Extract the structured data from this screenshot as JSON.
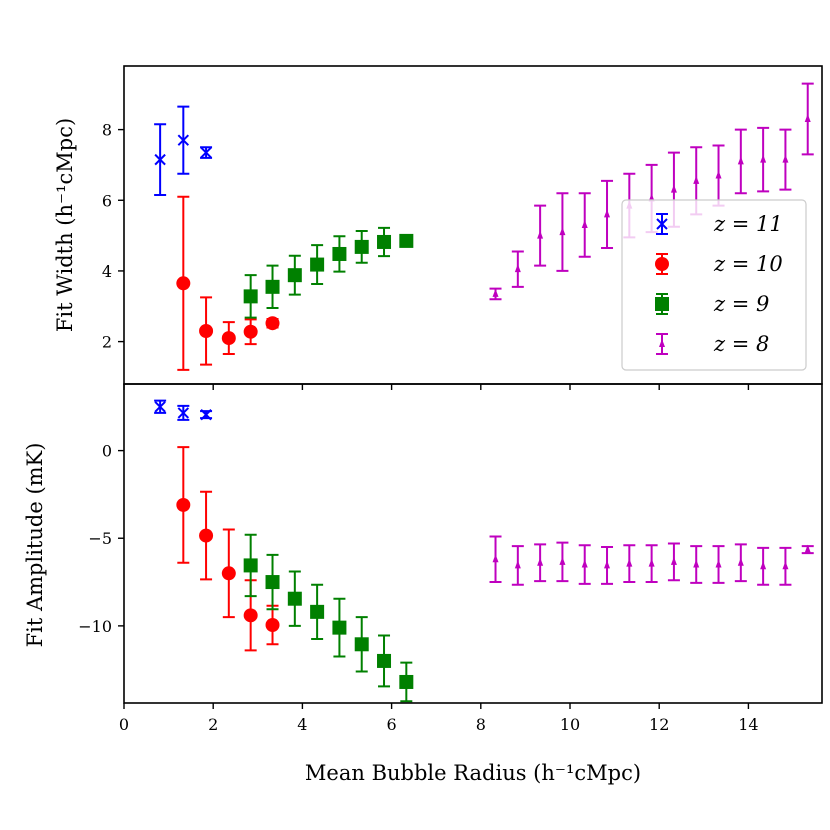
{
  "chart_data": [
    {
      "type": "scatter",
      "panel": "top",
      "ylabel": "Fit Width (h⁻¹cMpc)",
      "ylim": [
        0.8,
        9.8
      ],
      "yticks": [
        2,
        4,
        6,
        8
      ],
      "yticklabels": [
        "2",
        "4",
        "6",
        "8"
      ],
      "series": [
        {
          "name": "z = 11",
          "color": "#0000ff",
          "marker": "x",
          "x": [
            0.81,
            1.33,
            1.84
          ],
          "y": [
            7.15,
            7.7,
            7.35
          ],
          "yerr": [
            1.0,
            0.95,
            0.15
          ]
        },
        {
          "name": "z = 10",
          "color": "#ff0000",
          "marker": "o",
          "x": [
            1.33,
            1.84,
            2.35,
            2.84,
            3.33
          ],
          "y": [
            3.65,
            2.3,
            2.1,
            2.28,
            2.52
          ],
          "yerr": [
            2.45,
            0.95,
            0.45,
            0.35,
            0.12
          ]
        },
        {
          "name": "z = 9",
          "color": "#008000",
          "marker": "s",
          "x": [
            2.84,
            3.33,
            3.83,
            4.33,
            4.83,
            5.33,
            5.83,
            6.33
          ],
          "y": [
            3.28,
            3.55,
            3.88,
            4.18,
            4.48,
            4.68,
            4.82,
            4.85
          ],
          "yerr": [
            0.6,
            0.6,
            0.55,
            0.55,
            0.5,
            0.45,
            0.4,
            0.15
          ]
        },
        {
          "name": "z = 8",
          "color": "#bf00bf",
          "marker": "^",
          "x": [
            8.33,
            8.83,
            9.33,
            9.83,
            10.33,
            10.83,
            11.33,
            11.83,
            12.33,
            12.83,
            13.33,
            13.83,
            14.33,
            14.83,
            15.33
          ],
          "y": [
            3.35,
            4.05,
            5.0,
            5.1,
            5.3,
            5.6,
            5.85,
            6.05,
            6.3,
            6.55,
            6.7,
            7.1,
            7.15,
            7.15,
            8.3
          ],
          "yerr": [
            0.15,
            0.5,
            0.85,
            1.1,
            0.9,
            0.95,
            0.9,
            0.95,
            1.05,
            0.95,
            0.85,
            0.9,
            0.9,
            0.85,
            1.0
          ]
        }
      ],
      "legend": {
        "location": "right",
        "entries": [
          "z = 11",
          "z = 10",
          "z = 9",
          "z = 8"
        ]
      }
    },
    {
      "type": "scatter",
      "panel": "bottom",
      "xlabel": "Mean Bubble Radius (h⁻¹cMpc)",
      "ylabel": "Fit Amplitude (mK)",
      "xlim": [
        0,
        15.65
      ],
      "xticks": [
        0,
        2,
        4,
        6,
        8,
        10,
        12,
        14
      ],
      "xticklabels": [
        "0",
        "2",
        "4",
        "6",
        "8",
        "10",
        "12",
        "14"
      ],
      "ylim": [
        -14.4,
        3.8
      ],
      "yticks": [
        0,
        -5,
        -10
      ],
      "yticklabels": [
        "0",
        "−5",
        "−10"
      ],
      "series": [
        {
          "name": "z = 11",
          "color": "#0000ff",
          "marker": "x",
          "x": [
            0.81,
            1.33,
            1.84
          ],
          "y": [
            2.5,
            2.15,
            2.05
          ],
          "yerr": [
            0.35,
            0.4,
            0.2
          ]
        },
        {
          "name": "z = 10",
          "color": "#ff0000",
          "marker": "o",
          "x": [
            1.33,
            1.84,
            2.35,
            2.84,
            3.33
          ],
          "y": [
            -3.1,
            -4.85,
            -7.0,
            -9.4,
            -9.95
          ],
          "yerr": [
            3.3,
            2.5,
            2.5,
            2.0,
            1.1
          ]
        },
        {
          "name": "z = 9",
          "color": "#008000",
          "marker": "s",
          "x": [
            2.84,
            3.33,
            3.83,
            4.33,
            4.83,
            5.33,
            5.83,
            6.33
          ],
          "y": [
            -6.55,
            -7.5,
            -8.45,
            -9.2,
            -10.1,
            -11.05,
            -12.0,
            -13.2
          ],
          "yerr": [
            1.75,
            1.55,
            1.55,
            1.55,
            1.65,
            1.55,
            1.45,
            1.1
          ]
        },
        {
          "name": "z = 8",
          "color": "#bf00bf",
          "marker": "^",
          "x": [
            8.33,
            8.83,
            9.33,
            9.83,
            10.33,
            10.83,
            11.33,
            11.83,
            12.33,
            12.83,
            13.33,
            13.83,
            14.33,
            14.83,
            15.33
          ],
          "y": [
            -6.2,
            -6.55,
            -6.4,
            -6.35,
            -6.5,
            -6.55,
            -6.45,
            -6.45,
            -6.35,
            -6.5,
            -6.5,
            -6.4,
            -6.6,
            -6.6,
            -5.65
          ],
          "yerr": [
            1.3,
            1.1,
            1.05,
            1.1,
            1.1,
            1.05,
            1.05,
            1.05,
            1.05,
            1.05,
            1.05,
            1.05,
            1.05,
            1.05,
            0.2
          ]
        }
      ]
    }
  ]
}
